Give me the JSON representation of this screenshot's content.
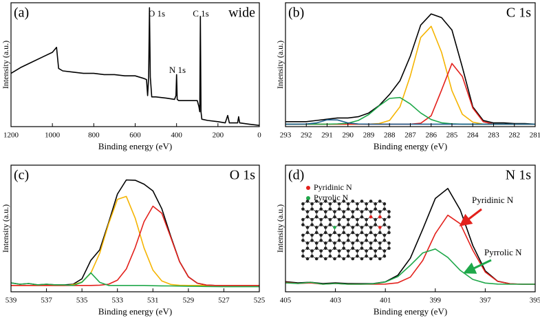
{
  "chart_data": [
    {
      "type": "line",
      "panel_label": "(a)",
      "title": "wide",
      "x_label": "Binding energy (eV)",
      "y_label": "Intensity (a.u.)",
      "xlim": [
        1200,
        0
      ],
      "xticks": [
        1200,
        1000,
        800,
        600,
        400,
        200,
        0
      ],
      "ylim": [
        0,
        100
      ],
      "annotations": [
        "O 1s",
        "N 1s",
        "C 1s"
      ],
      "x": [
        1200,
        1150,
        1100,
        1050,
        1000,
        980,
        970,
        950,
        900,
        850,
        800,
        750,
        700,
        650,
        600,
        560,
        545,
        540,
        535,
        531,
        527,
        520,
        500,
        450,
        410,
        403,
        400,
        397,
        390,
        350,
        300,
        292,
        288,
        285,
        282,
        278,
        250,
        200,
        165,
        153,
        145,
        105,
        100,
        95,
        50,
        0
      ],
      "series": [
        {
          "color": "#000000",
          "values": [
            43,
            48,
            52,
            56,
            60,
            64,
            47,
            45,
            44,
            43,
            43,
            42,
            42,
            41,
            41,
            39,
            38,
            25,
            40,
            96,
            40,
            24,
            24,
            23,
            22,
            25,
            42,
            22,
            21,
            21,
            21,
            16,
            12,
            89,
            12,
            6,
            5,
            4,
            3,
            9,
            3,
            3,
            8,
            3,
            2,
            1
          ]
        }
      ]
    },
    {
      "type": "line",
      "panel_label": "(b)",
      "title": "C 1s",
      "x_label": "Binding energy (eV)",
      "y_label": "Intensity (a.u.)",
      "xlim": [
        293,
        281
      ],
      "xticks": [
        293,
        292,
        291,
        290,
        289,
        288,
        287,
        286,
        285,
        284,
        283,
        282,
        281
      ],
      "ylim": [
        0,
        100
      ],
      "x": [
        293,
        292.5,
        292,
        291.5,
        291,
        290.5,
        290,
        289.5,
        289,
        288.5,
        288,
        287.5,
        287,
        286.5,
        286,
        285.5,
        285,
        284.5,
        284,
        283.5,
        283,
        282.5,
        282,
        281.5,
        281
      ],
      "series": [
        {
          "color": "#000000",
          "values": [
            4,
            4,
            4,
            5,
            6,
            7,
            7,
            8,
            11,
            17,
            26,
            37,
            57,
            82,
            91,
            88,
            78,
            48,
            16,
            5,
            3,
            3,
            2.5,
            2.5,
            2
          ]
        },
        {
          "color": "#f5b400",
          "values": [
            2,
            2,
            2,
            2,
            2,
            2,
            2,
            2,
            2,
            2.5,
            5,
            16,
            41,
            72,
            81,
            60,
            29,
            10,
            3.6,
            2,
            2,
            2,
            2,
            2,
            2
          ]
        },
        {
          "color": "#e3201b",
          "values": [
            2,
            2,
            2,
            2,
            2,
            2,
            2,
            2,
            2,
            2,
            2,
            2,
            2,
            2.7,
            8.8,
            29.5,
            51,
            40.5,
            15,
            4,
            2,
            2,
            2,
            2,
            2
          ]
        },
        {
          "color": "#1fa84a",
          "values": [
            2,
            2,
            2,
            2,
            2,
            2.2,
            2.8,
            5,
            9.7,
            16.7,
            22.8,
            23.5,
            18.3,
            11,
            5.7,
            3.1,
            2.3,
            2,
            2,
            2,
            2,
            2,
            2,
            2,
            2
          ]
        },
        {
          "color": "#1f5f8f",
          "values": [
            2,
            2,
            2.1,
            3,
            5.5,
            5.4,
            3,
            2.1,
            2,
            2,
            2,
            2,
            2,
            2,
            2,
            2,
            2,
            2,
            2,
            2,
            2,
            2,
            2,
            2,
            2
          ]
        }
      ]
    },
    {
      "type": "line",
      "panel_label": "(c)",
      "title": "O 1s",
      "x_label": "Binding energy (eV)",
      "y_label": "Intensity (a.u.)",
      "xlim": [
        539,
        525
      ],
      "xticks": [
        539,
        537,
        535,
        533,
        531,
        529,
        527,
        525
      ],
      "ylim": [
        0,
        100
      ],
      "x": [
        539,
        538.5,
        538,
        537.5,
        537,
        536.5,
        536,
        535.5,
        535,
        534.5,
        534,
        533.5,
        533,
        532.5,
        532,
        531.5,
        531,
        530.5,
        530,
        529.5,
        529,
        528.5,
        528,
        527.5,
        527,
        526.5,
        526,
        525.5,
        525
      ],
      "series": [
        {
          "color": "#000000",
          "values": [
            7,
            6,
            6.5,
            5.5,
            6,
            5.5,
            5.5,
            6,
            10.2,
            24.8,
            33.1,
            54.5,
            77.2,
            88.3,
            88.1,
            85,
            79.7,
            65.6,
            44,
            23.9,
            11.8,
            6.8,
            5.3,
            5,
            5,
            5,
            5,
            5,
            5
          ]
        },
        {
          "color": "#f5b400",
          "values": [
            5,
            5,
            5,
            5,
            5,
            5,
            5,
            5.6,
            7.7,
            14.7,
            30.4,
            53.5,
            73,
            75.3,
            58.2,
            34.6,
            17.1,
            8.6,
            5.8,
            5.1,
            5,
            5,
            5,
            5,
            5,
            5,
            5,
            5,
            5
          ]
        },
        {
          "color": "#e3201b",
          "values": [
            5,
            5,
            5,
            5,
            5,
            5,
            5,
            5,
            5,
            5,
            5.2,
            6,
            9.2,
            18,
            34.9,
            55.4,
            67.6,
            62,
            43.2,
            23.8,
            11.8,
            6.8,
            5.3,
            5,
            5,
            5,
            5,
            5,
            5
          ]
        },
        {
          "color": "#1fa84a",
          "values": [
            7,
            6,
            6.5,
            5.5,
            6,
            5.5,
            5.5,
            5,
            7.5,
            15,
            7.5,
            5,
            5,
            5,
            5,
            5,
            4.8,
            4.7,
            4.6,
            4.5,
            4.4,
            4.3,
            4.2,
            4.1,
            4,
            4,
            4,
            4,
            4
          ]
        }
      ]
    },
    {
      "type": "line",
      "panel_label": "(d)",
      "title": "N 1s",
      "x_label": "Binding energy (eV)",
      "y_label": "Intensity (a.u.)",
      "xlim": [
        405,
        395
      ],
      "xticks": [
        405,
        403,
        401,
        399,
        397,
        395
      ],
      "ylim": [
        0,
        100
      ],
      "annotations": [
        "Pyridinic N",
        "Pyrrolic N"
      ],
      "x": [
        405,
        404.5,
        404,
        403.5,
        403,
        402.5,
        402,
        401.5,
        401,
        400.5,
        400,
        399.5,
        399,
        398.5,
        398,
        397.5,
        397,
        396.5,
        396,
        395.5,
        395
      ],
      "series": [
        {
          "color": "#000000",
          "values": [
            8,
            7,
            7.5,
            6.5,
            7,
            6.5,
            6.4,
            6.4,
            7.8,
            13.1,
            26.5,
            49.5,
            73.7,
            81.6,
            64.6,
            36.6,
            16.5,
            8.3,
            6.3,
            6,
            6
          ]
        },
        {
          "name": "Pyridinic N",
          "color": "#e3201b",
          "values": [
            7.5,
            6.5,
            7,
            6,
            6.5,
            6,
            6,
            6,
            6.1,
            7.1,
            11.6,
            24.8,
            45.9,
            60.5,
            53.7,
            32.8,
            15.6,
            8.2,
            6.3,
            6,
            6
          ]
        },
        {
          "name": "Pyrrolic N",
          "color": "#1fa84a",
          "values": [
            7,
            6.5,
            7.5,
            6,
            6.5,
            6,
            6,
            6.3,
            7.7,
            12,
            20.9,
            30.7,
            33.8,
            27.1,
            16.9,
            9.8,
            6.9,
            6.1,
            6,
            6,
            6
          ]
        }
      ]
    }
  ]
}
